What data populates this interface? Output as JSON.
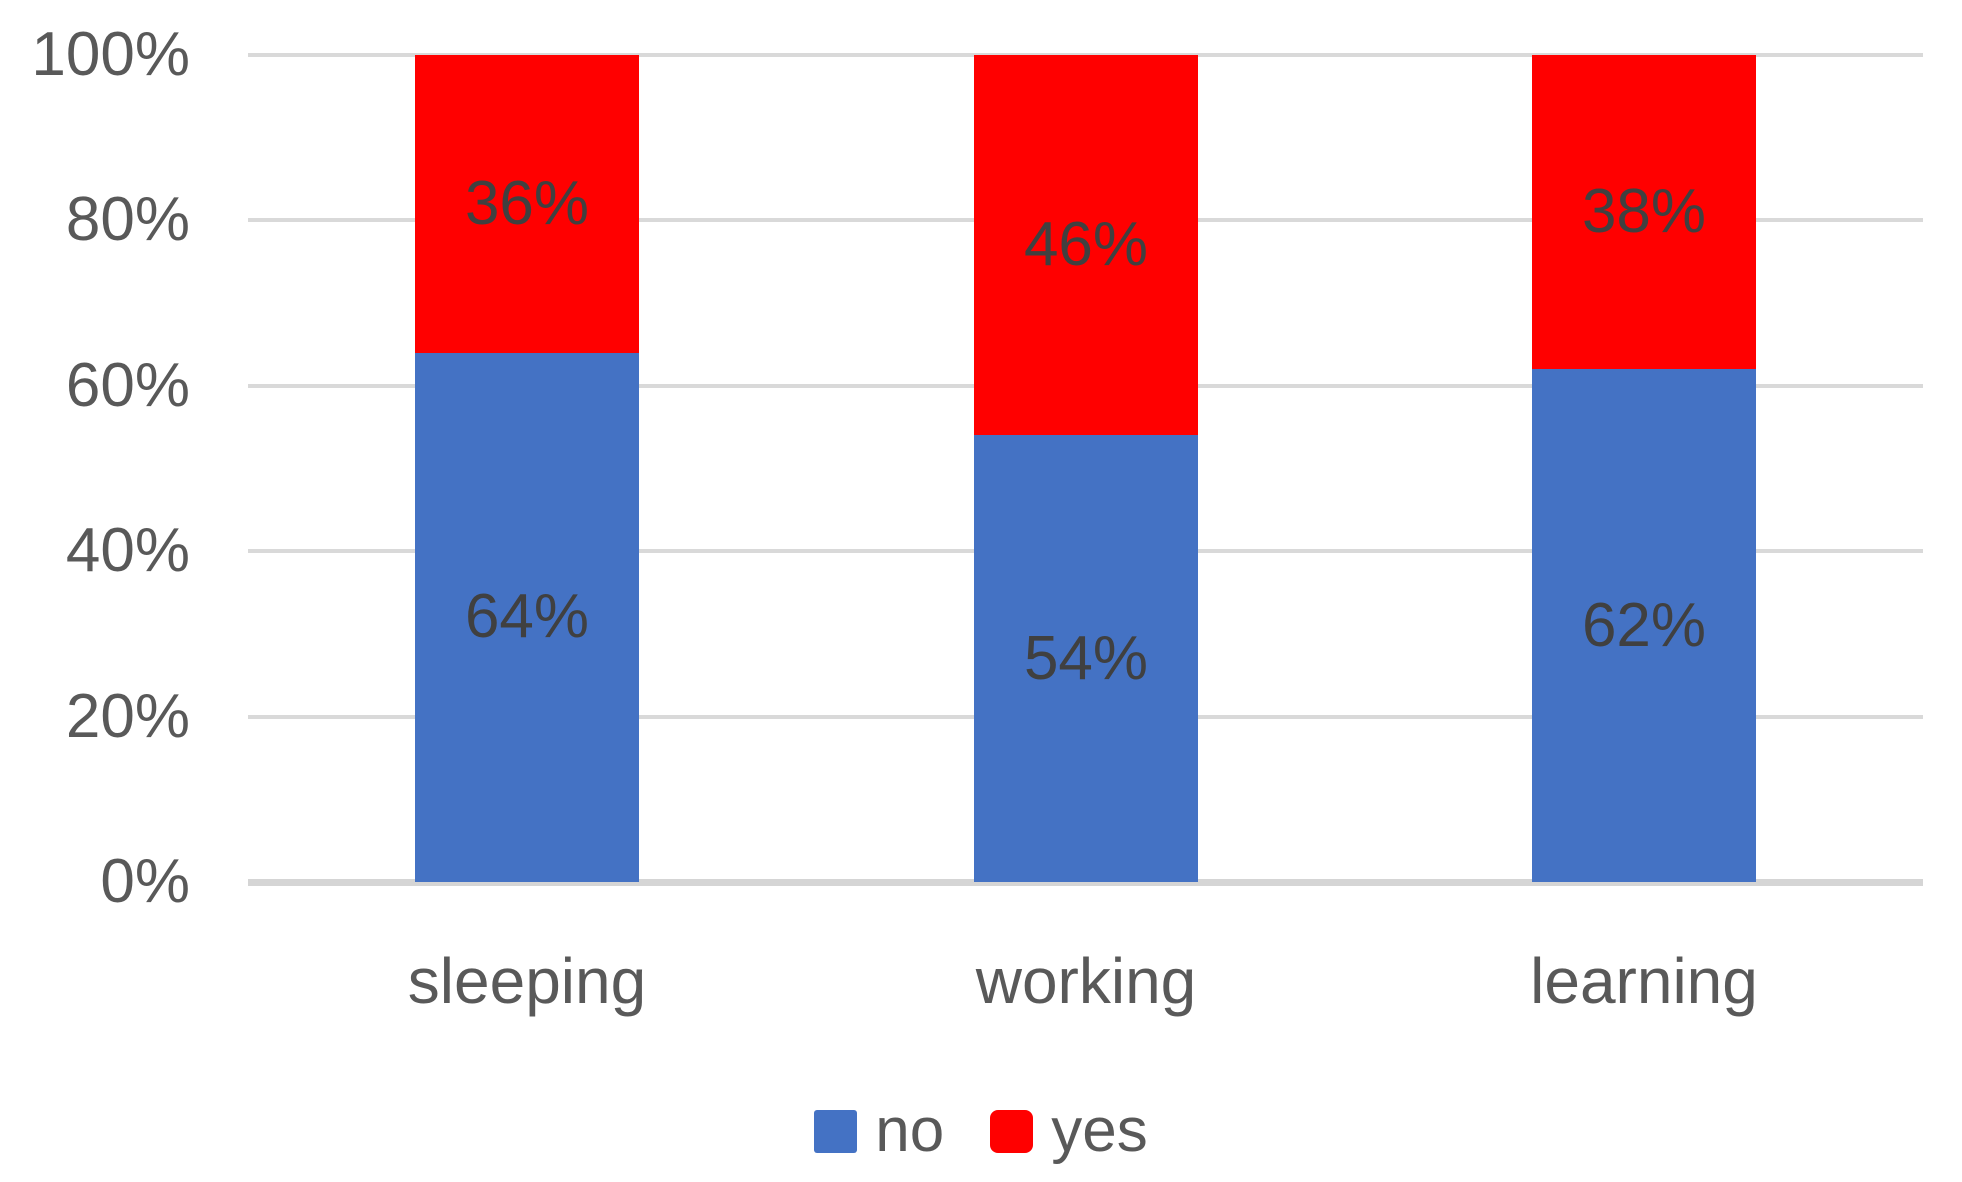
{
  "chart_data": {
    "type": "bar",
    "subtype": "stacked-100-percent-column",
    "title": "",
    "xlabel": "",
    "ylabel": "",
    "categories": [
      "sleeping",
      "working",
      "learning"
    ],
    "series": [
      {
        "name": "no",
        "color": "#4472C4",
        "values": [
          64,
          54,
          62
        ],
        "data_labels": [
          "64%",
          "54%",
          "62%"
        ]
      },
      {
        "name": "yes",
        "color": "#FF0000",
        "values": [
          36,
          46,
          38
        ],
        "data_labels": [
          "36%",
          "46%",
          "38%"
        ]
      }
    ],
    "y_ticks": [
      {
        "value": 0,
        "label": "0%"
      },
      {
        "value": 20,
        "label": "20%"
      },
      {
        "value": 40,
        "label": "40%"
      },
      {
        "value": 60,
        "label": "60%"
      },
      {
        "value": 80,
        "label": "80%"
      },
      {
        "value": 100,
        "label": "100%"
      }
    ],
    "ylim": [
      0,
      100
    ],
    "grid": true,
    "legend_position": "bottom",
    "legend_entries": [
      {
        "label": "no",
        "color": "#4472C4"
      },
      {
        "label": "yes",
        "color": "#FF0000"
      }
    ]
  },
  "styles": {
    "axis_label_color": "#595959",
    "category_label_color": "#595959",
    "data_label_color": "#404040",
    "legend_label_color": "#595959",
    "gridline_color": "#D9D9D9",
    "axis_line_color": "#D5D5D5",
    "background_color": "#FFFFFF"
  }
}
